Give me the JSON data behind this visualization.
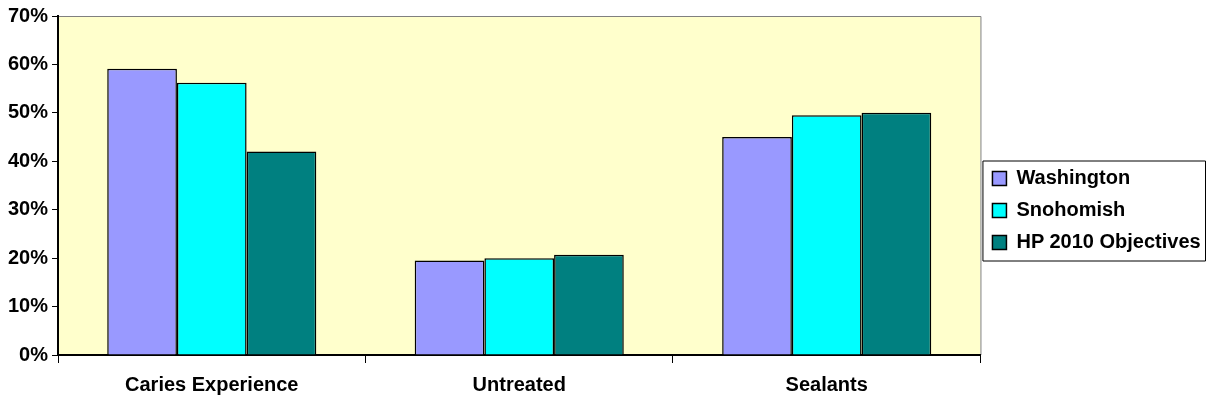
{
  "chart_data": {
    "type": "bar",
    "categories": [
      "Caries Experience",
      "Untreated",
      "Sealants"
    ],
    "series": [
      {
        "name": "Washington",
        "color": "#9999ff",
        "values": [
          59.1,
          19.5,
          45
        ]
      },
      {
        "name": "Snohomish",
        "color": "#00ffff",
        "values": [
          56.2,
          20,
          49.5
        ]
      },
      {
        "name": "HP 2010 Objectives",
        "color": "#008080",
        "values": [
          42,
          20.7,
          50
        ]
      }
    ],
    "ylim": [
      0,
      70
    ],
    "yticks": [
      {
        "value": 0,
        "label": "0%"
      },
      {
        "value": 10,
        "label": "10%"
      },
      {
        "value": 20,
        "label": "20%"
      },
      {
        "value": 30,
        "label": "30%"
      },
      {
        "value": 40,
        "label": "40%"
      },
      {
        "value": 50,
        "label": "50%"
      },
      {
        "value": 60,
        "label": "60%"
      },
      {
        "value": 70,
        "label": "70%"
      }
    ],
    "grid": false,
    "legend": "right"
  }
}
